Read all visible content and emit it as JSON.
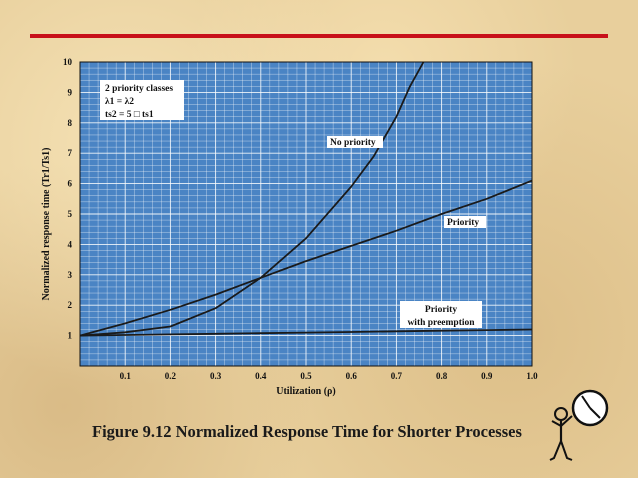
{
  "caption": "Figure 9.12 Normalized Response Time for Shorter Processes",
  "chart_data": {
    "type": "line",
    "xlabel": "Utilization (ρ)",
    "ylabel": "Normalized response time (Tr1/Ts1)",
    "xlim": [
      0,
      1.0
    ],
    "ylim": [
      0,
      10
    ],
    "x_ticks": [
      "0.1",
      "0.2",
      "0.3",
      "0.4",
      "0.5",
      "0.6",
      "0.7",
      "0.8",
      "0.9",
      "1.0"
    ],
    "y_ticks": [
      "1",
      "2",
      "3",
      "4",
      "5",
      "6",
      "7",
      "8",
      "9",
      "10"
    ],
    "grid": true,
    "note": {
      "line1": "2 priority classes",
      "line2": "λ1 = λ2",
      "line3": "ts2 = 5 □ ts1"
    },
    "series": [
      {
        "name": "No priority",
        "x": [
          0,
          0.1,
          0.2,
          0.3,
          0.4,
          0.5,
          0.6,
          0.65,
          0.7,
          0.73,
          0.76
        ],
        "y": [
          1,
          1.11,
          1.3,
          1.9,
          2.9,
          4.2,
          5.9,
          6.9,
          8.2,
          9.2,
          10
        ]
      },
      {
        "name": "Priority",
        "x": [
          0,
          0.1,
          0.2,
          0.3,
          0.4,
          0.5,
          0.6,
          0.7,
          0.8,
          0.9,
          1.0
        ],
        "y": [
          1,
          1.4,
          1.85,
          2.35,
          2.9,
          3.45,
          3.95,
          4.45,
          5.0,
          5.5,
          6.1
        ]
      },
      {
        "name": "Priority with preemption",
        "x": [
          0,
          0.1,
          0.2,
          0.3,
          0.4,
          0.5,
          0.6,
          0.7,
          0.8,
          0.9,
          1.0
        ],
        "y": [
          1,
          1.02,
          1.04,
          1.06,
          1.08,
          1.1,
          1.12,
          1.14,
          1.16,
          1.18,
          1.2
        ]
      }
    ],
    "series_labels": {
      "no_priority": "No priority",
      "priority": "Priority",
      "preemption_line1": "Priority",
      "preemption_line2": "with preemption"
    }
  },
  "colors": {
    "rule": "#c8101a",
    "plot_background": "#4a84c4",
    "grid": "#ffffff",
    "curve": "#1a1a1a",
    "note_background": "#ffffff"
  },
  "icons": {
    "clock_figure": "stick-figure-with-clock-icon"
  }
}
